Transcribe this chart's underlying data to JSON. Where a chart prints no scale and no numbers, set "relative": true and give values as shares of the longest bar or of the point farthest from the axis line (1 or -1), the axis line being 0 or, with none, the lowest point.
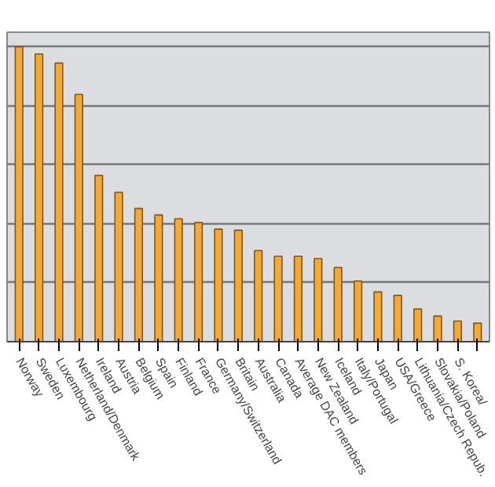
{
  "chart_data": {
    "type": "bar",
    "relative": true,
    "grid": "y",
    "color": "#f5a833",
    "categories": [
      "Norway",
      "Sweden",
      "Luxembourg",
      "Netherland/Denmark",
      "Ireland",
      "Austria",
      "Belgium",
      "Spain",
      "Finland",
      "France",
      "Germany/Switzerland",
      "Britain",
      "Australia",
      "Canada",
      "Average DAC members",
      "New Zealand",
      "Iceland",
      "Italy/Portugal",
      "Japan",
      "USA/Greece",
      "Lithuania/Czech Repub.",
      "Slovakia/Poland",
      "S. Korea/",
      null
    ],
    "values": [
      1,
      0.976,
      0.945,
      0.839,
      0.564,
      0.507,
      0.452,
      0.43,
      0.417,
      0.404,
      0.382,
      0.378,
      0.309,
      0.29,
      0.29,
      0.282,
      0.252,
      0.206,
      0.169,
      0.157,
      0.111,
      0.087,
      0.07,
      0.063
    ]
  }
}
